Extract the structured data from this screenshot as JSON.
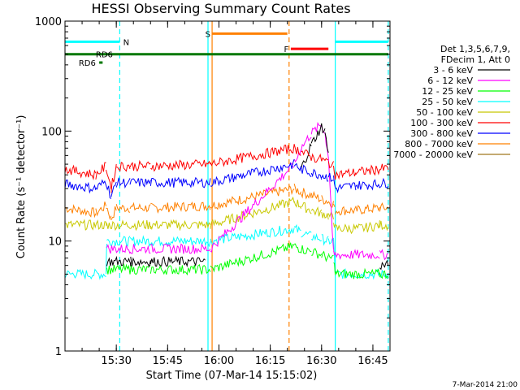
{
  "chart_data": {
    "type": "line",
    "title": "HESSI Observing Summary Count Rates",
    "xlabel": "Start Time (07-Mar-14 15:15:02)",
    "ylabel": "Count Rate (s⁻¹ detector⁻¹)",
    "yscale": "log",
    "ylim": [
      1,
      1000
    ],
    "xlim_minutes": [
      15.0,
      110.0
    ],
    "x_ticks": [
      {
        "m": 30,
        "label": "15:30"
      },
      {
        "m": 45,
        "label": "15:45"
      },
      {
        "m": 60,
        "label": "16:00"
      },
      {
        "m": 75,
        "label": "16:15"
      },
      {
        "m": 90,
        "label": "16:30"
      },
      {
        "m": 105,
        "label": "16:45"
      }
    ],
    "y_ticks": [
      {
        "v": 1,
        "label": "1"
      },
      {
        "v": 10,
        "label": "10"
      },
      {
        "v": 100,
        "label": "100"
      },
      {
        "v": 1000,
        "label": "1000"
      }
    ],
    "legend_header": [
      "Det 1,3,5,6,7,9,",
      "FDecim 1, Att 0"
    ],
    "legend_placement": "right",
    "series": [
      {
        "name": "3 - 6 keV",
        "color": "#000000",
        "x": [
          15,
          27,
          27.2,
          34,
          34.2,
          40,
          56,
          57.5,
          82,
          84,
          87,
          90,
          91,
          92,
          93.5,
          94,
          107,
          109.5
        ],
        "y": [
          null,
          null,
          6.5,
          6.5,
          6.5,
          6.5,
          6.5,
          null,
          null,
          45,
          75,
          110,
          100,
          60,
          null,
          null,
          6.0,
          6.0
        ]
      },
      {
        "name": "6 - 12 keV",
        "color": "#ff00ff",
        "x": [
          27.2,
          34,
          40,
          57.5,
          82,
          84,
          87,
          90,
          91,
          92,
          93.5,
          94,
          107,
          109.5
        ],
        "y": [
          8.5,
          8.5,
          8.5,
          8.5,
          50,
          70,
          95,
          115,
          95,
          60,
          7.5,
          7.5,
          7.5,
          7.5
        ]
      },
      {
        "name": "12 - 25 keV",
        "color": "#00ff00",
        "x": [
          27.2,
          34,
          40,
          57.5,
          82,
          84,
          87,
          90,
          92,
          93.5,
          94,
          107,
          109.5
        ],
        "y": [
          5.5,
          5.5,
          5.5,
          5.5,
          9,
          8.5,
          8,
          7.5,
          7.0,
          7.0,
          5.0,
          5.0,
          5.0
        ]
      },
      {
        "name": "25 - 50 keV",
        "color": "#00ffff",
        "x": [
          15,
          18,
          27,
          27.2,
          34,
          40,
          57.5,
          82,
          84,
          87,
          90,
          92,
          93.5,
          94,
          102,
          107,
          109.5
        ],
        "y": [
          5.0,
          5.0,
          5.0,
          10,
          10,
          10,
          10,
          13,
          12,
          11,
          10.5,
          10,
          10,
          5.0,
          5.0,
          5.0,
          5.0
        ]
      },
      {
        "name": "50 - 100 keV",
        "color": "#c8c800",
        "x": [
          15,
          27,
          27.2,
          34,
          40,
          57.5,
          82,
          84,
          87,
          90,
          92,
          93.5,
          94,
          102,
          107,
          109.5
        ],
        "y": [
          14,
          14,
          14,
          14,
          14,
          14,
          23,
          21,
          19,
          18,
          17,
          16,
          13,
          13,
          14,
          14
        ]
      },
      {
        "name": "100 - 300 keV",
        "color": "#ff0000",
        "x": [
          15,
          24,
          27,
          28.5,
          30,
          34,
          40,
          57.5,
          82,
          84,
          87,
          90,
          92,
          93.5,
          94,
          100,
          107,
          109.5
        ],
        "y": [
          45,
          40,
          48,
          30,
          48,
          48,
          48,
          50,
          70,
          65,
          58,
          55,
          52,
          48,
          40,
          42,
          45,
          46
        ]
      },
      {
        "name": "300 - 800 keV",
        "color": "#0000ff",
        "x": [
          15,
          24,
          27,
          28.5,
          30,
          34,
          40,
          57.5,
          82,
          84,
          87,
          90,
          92,
          93.5,
          94,
          100,
          107,
          109.5
        ],
        "y": [
          33,
          30,
          35,
          25,
          34,
          34,
          34,
          34,
          50,
          45,
          42,
          40,
          38,
          37,
          30,
          32,
          33,
          34
        ]
      },
      {
        "name": "800 - 7000 keV",
        "color": "#ff8000",
        "x": [
          15,
          24,
          27,
          28.5,
          30,
          34,
          40,
          57.5,
          82,
          84,
          87,
          90,
          92,
          93.5,
          94,
          100,
          107,
          109.5
        ],
        "y": [
          20,
          18,
          21,
          16,
          20,
          20,
          20,
          21,
          30,
          28,
          26,
          24,
          23,
          22,
          19,
          19,
          20,
          20
        ]
      },
      {
        "name": "7000 - 20000 keV",
        "color": "#a0781e",
        "x": [],
        "y": []
      }
    ],
    "annotations": [
      {
        "label": "N",
        "color": "#00ffff",
        "y": 650,
        "x_start": 15,
        "x_end": 31,
        "label_x": 32
      },
      {
        "label": "N",
        "color": "#00ffff",
        "y": 650,
        "x_start": 94,
        "x_end": 109.5,
        "label_x": null
      },
      {
        "label": "S",
        "color": "#ff8000",
        "y": 770,
        "x_start": 58,
        "x_end": 80,
        "label_x": 56
      },
      {
        "label": "F",
        "color": "#ff0000",
        "y": 560,
        "x_start": 81,
        "x_end": 92,
        "label_x": 79
      },
      {
        "label": "RD6",
        "color": "#007800",
        "y": 500,
        "x_start": 15,
        "x_end": 109.5,
        "label_x": 24
      },
      {
        "label": "RD6",
        "color": "#007800",
        "y": 420,
        "x_start": 25,
        "x_end": 26,
        "label_x": 19
      }
    ],
    "vlines": [
      {
        "m": 31.0,
        "color": "#00ffff",
        "style": "dash"
      },
      {
        "m": 94.0,
        "color": "#00ffff",
        "style": "solid"
      },
      {
        "m": 109.5,
        "color": "#00ffff",
        "style": "dash"
      },
      {
        "m": 56.8,
        "color": "#00ffff",
        "style": "solid"
      },
      {
        "m": 58.0,
        "color": "#ff8000",
        "style": "solid"
      },
      {
        "m": 80.5,
        "color": "#ff8000",
        "style": "dash"
      }
    ],
    "date_stamp": "7-Mar-2014 21:00"
  }
}
